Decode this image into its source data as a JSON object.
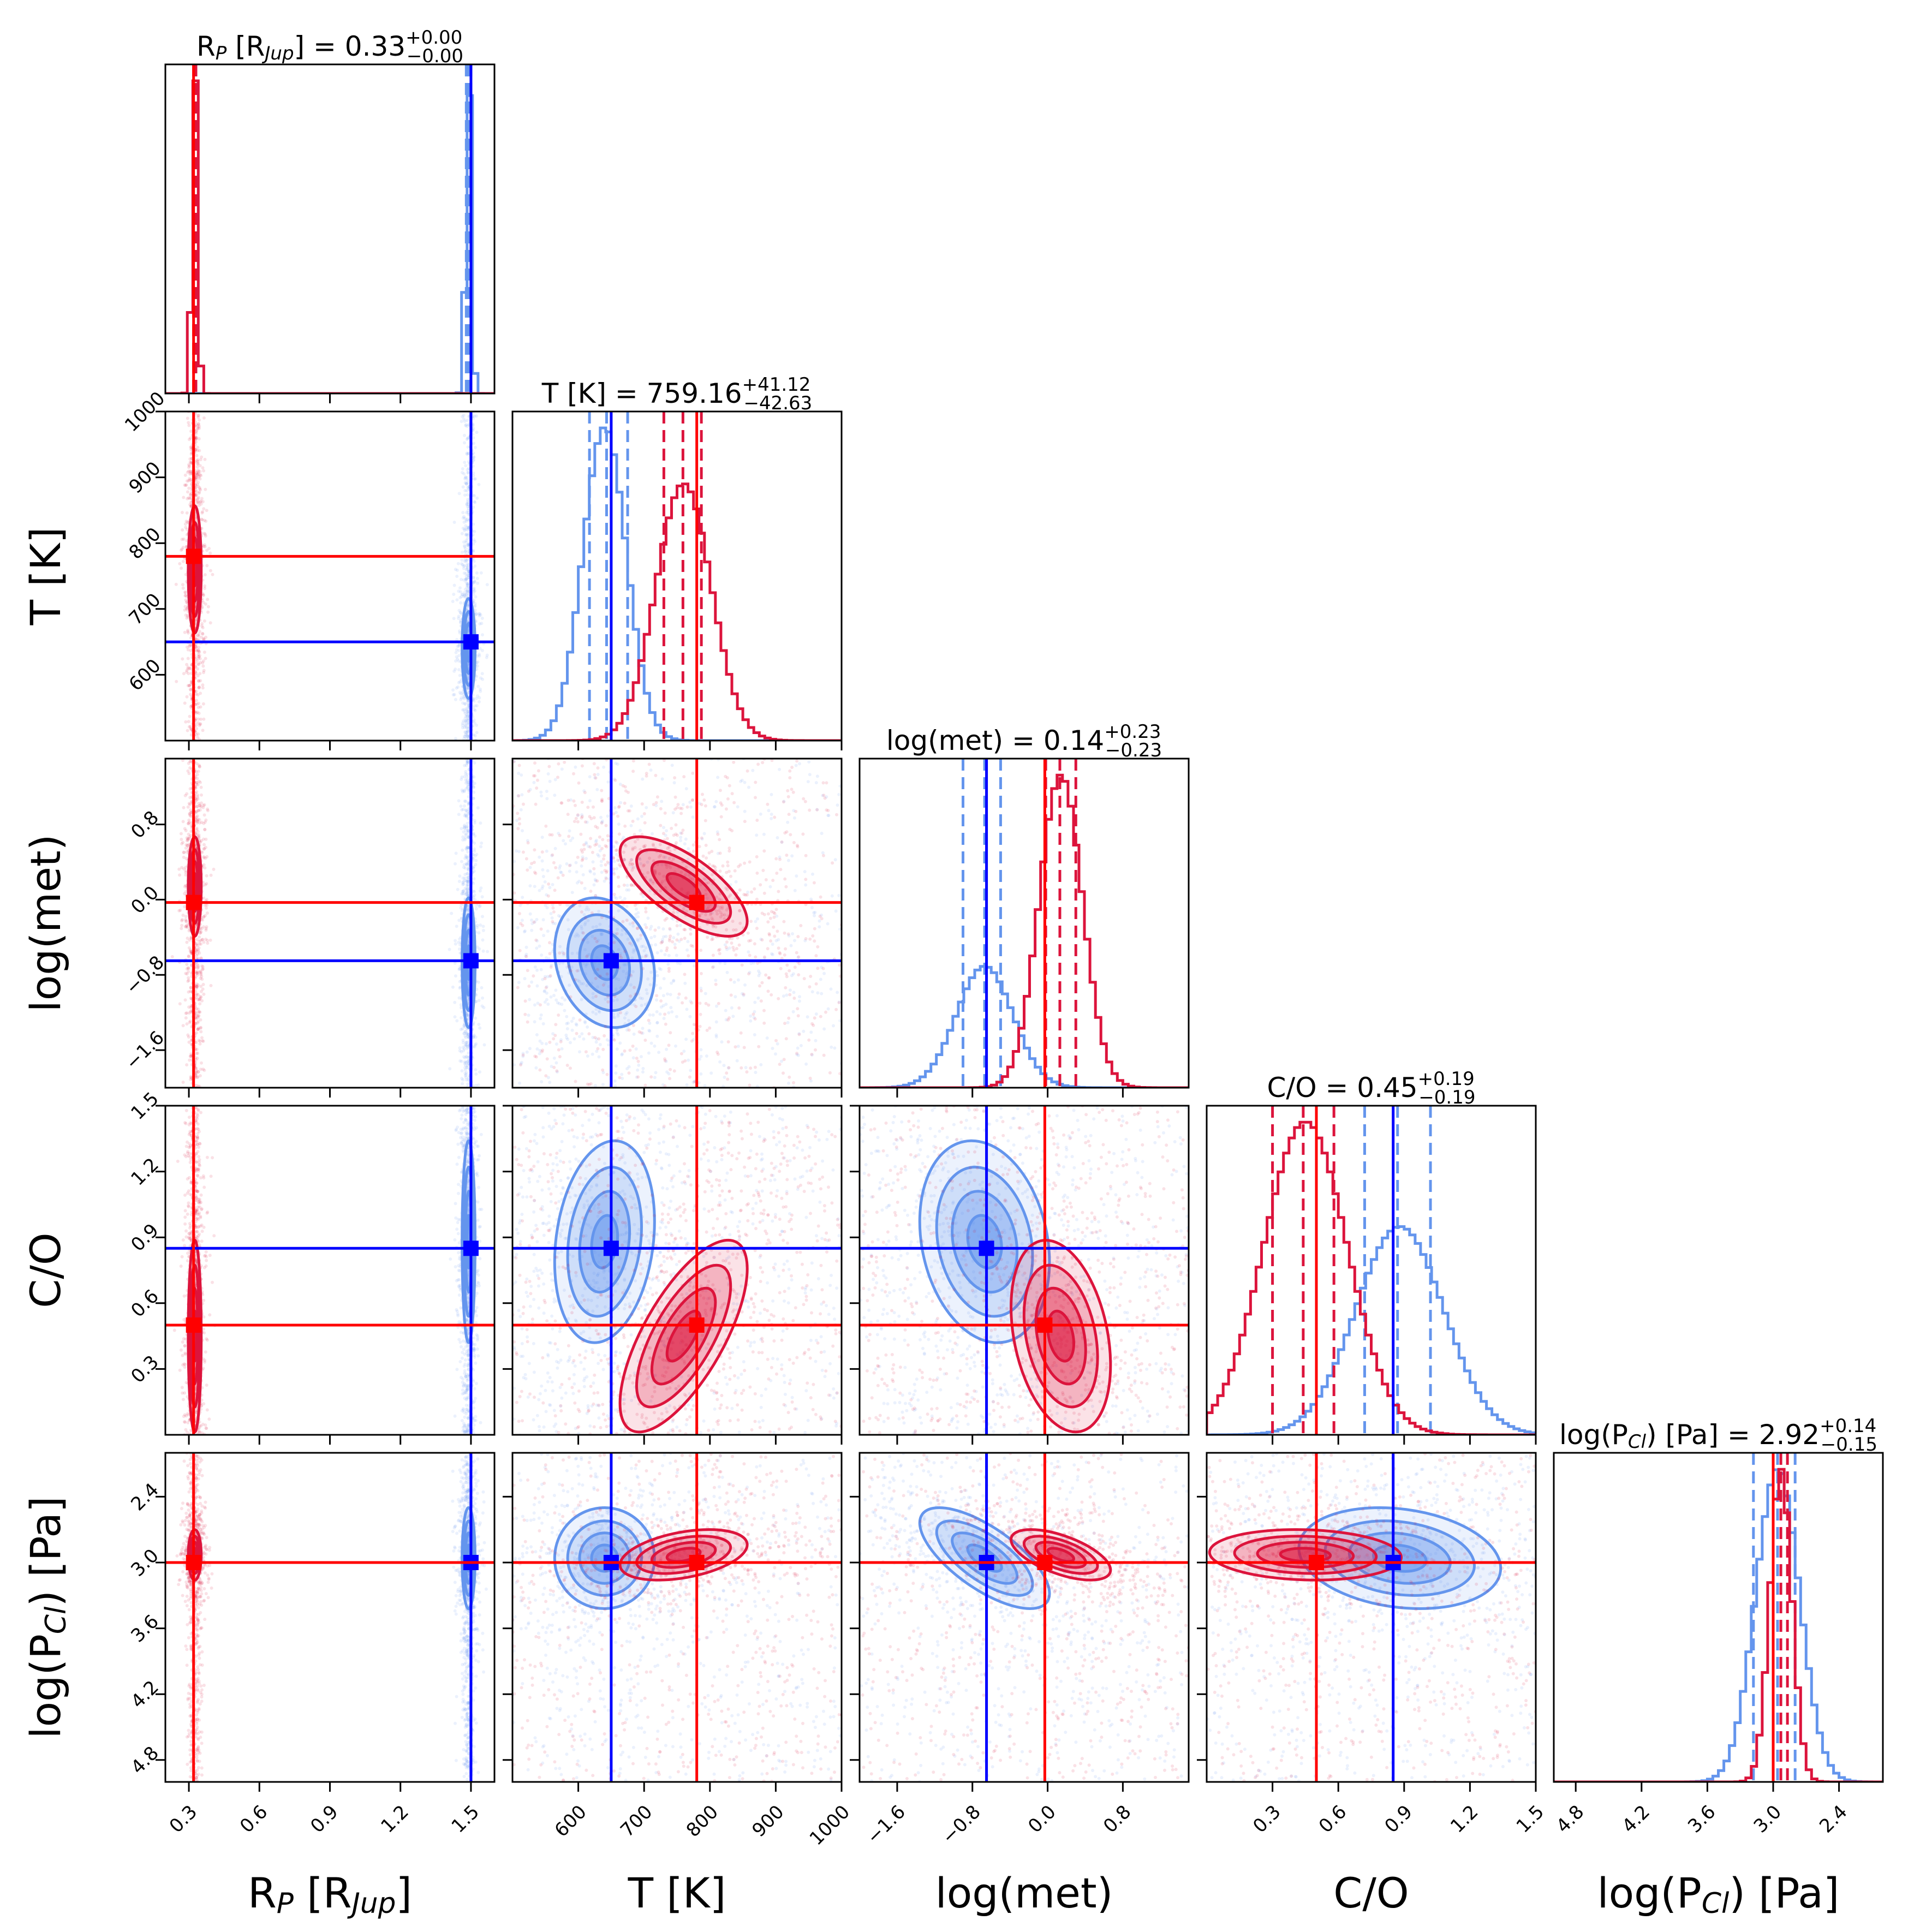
{
  "colors": {
    "blue_samples": "#6495ed",
    "blue_truth": "#0000ff",
    "red_samples": "#dc143c",
    "red_truth": "#ff0000"
  },
  "chart_data": {
    "type": "corner",
    "parameters": [
      {
        "key": "rp",
        "label_main": "R",
        "label_sub": "P",
        "label_post": " [R",
        "label_sub2": "Jup",
        "label_end": "]",
        "range": [
          0.2,
          1.6
        ],
        "ticks": [
          0.3,
          0.6,
          0.9,
          1.2,
          1.5
        ],
        "tick_labels": [
          "0.3",
          "0.6",
          "0.9",
          "1.2",
          "1.5"
        ],
        "truth_blue": 1.5,
        "truth_red": 0.32,
        "title_value": "0.33",
        "title_plus": "+0.00",
        "title_minus": "−0.00",
        "hist_red": {
          "center": 0.325,
          "sigma": 0.012,
          "quantiles": [
            0.32,
            0.325,
            0.33
          ]
        },
        "hist_blue": {
          "center": 1.49,
          "sigma": 0.012,
          "quantiles": [
            1.48,
            1.49,
            1.5
          ]
        }
      },
      {
        "key": "t",
        "label_main": "T [K]",
        "range": [
          500,
          1000
        ],
        "ticks": [
          600,
          700,
          800,
          900,
          1000
        ],
        "tick_labels": [
          "600",
          "700",
          "800",
          "900",
          "1000"
        ],
        "truth_blue": 650,
        "truth_red": 780,
        "title_value": "759.16",
        "title_plus": "+41.12",
        "title_minus": "−42.63",
        "hist_red": {
          "center": 760,
          "sigma": 42,
          "quantiles": [
            730,
            759,
            787
          ]
        },
        "hist_blue": {
          "center": 640,
          "sigma": 33,
          "quantiles": [
            617,
            643,
            675
          ]
        }
      },
      {
        "key": "met",
        "label_main": "log(met)",
        "range": [
          -2.0,
          1.5
        ],
        "ticks": [
          -1.6,
          -0.8,
          0.0,
          0.8
        ],
        "tick_labels": [
          "−1.6",
          "−0.8",
          "0.0",
          "0.8"
        ],
        "truth_blue": -0.65,
        "truth_red": -0.03,
        "title_value": "0.14",
        "title_plus": "+0.23",
        "title_minus": "−0.23",
        "hist_red": {
          "center": 0.14,
          "sigma": 0.23,
          "quantiles": [
            -0.02,
            0.13,
            0.3
          ]
        },
        "hist_blue": {
          "center": -0.67,
          "sigma": 0.3,
          "quantiles": [
            -0.9,
            -0.67,
            -0.5
          ]
        }
      },
      {
        "key": "co",
        "label_main": "C/O",
        "range": [
          0.0,
          1.5
        ],
        "ticks": [
          0.3,
          0.6,
          0.9,
          1.2,
          1.5
        ],
        "tick_labels": [
          "0.3",
          "0.6",
          "0.9",
          "1.2",
          "1.5"
        ],
        "truth_blue": 0.85,
        "truth_red": 0.5,
        "title_value": "0.45",
        "title_plus": "+0.19",
        "title_minus": "−0.19",
        "hist_red": {
          "center": 0.45,
          "sigma": 0.19,
          "quantiles": [
            0.3,
            0.44,
            0.58
          ]
        },
        "hist_blue": {
          "center": 0.88,
          "sigma": 0.2,
          "quantiles": [
            0.72,
            0.87,
            1.02
          ]
        }
      },
      {
        "key": "pcl",
        "label_main": "log(P",
        "label_sub": "Cl",
        "label_post": ") [Pa]",
        "range": [
          5.0,
          2.0
        ],
        "ticks": [
          4.8,
          4.2,
          3.6,
          3.0,
          2.4
        ],
        "tick_labels": [
          "4.8",
          "4.2",
          "3.6",
          "3.0",
          "2.4"
        ],
        "truth_blue": 3.0,
        "truth_red": 3.0,
        "title_value": "2.92",
        "title_plus": "+0.14",
        "title_minus": "−0.15",
        "hist_red": {
          "center": 2.93,
          "sigma": 0.1,
          "quantiles": [
            2.87,
            2.93,
            3.0
          ]
        },
        "hist_blue": {
          "center": 2.96,
          "sigma": 0.2,
          "quantiles": [
            2.8,
            2.96,
            3.18
          ]
        }
      }
    ],
    "title_prefix": {
      "rp": "R",
      "t": "T [K]",
      "met": "log(met)",
      "co": "C/O",
      "pcl": "log(P"
    },
    "correlations": {
      "red": {
        "1_0": 0.0,
        "2_0": 0.0,
        "2_1": -0.7,
        "3_0": 0.0,
        "3_1": 0.7,
        "3_2": -0.3,
        "4_0": 0.0,
        "4_1": -0.4,
        "4_2": 0.6,
        "4_3": 0.1
      },
      "blue": {
        "1_0": 0.0,
        "2_0": 0.0,
        "2_1": -0.2,
        "3_0": 0.0,
        "3_1": 0.2,
        "3_2": -0.2,
        "4_0": 0.0,
        "4_1": 0.0,
        "4_2": 0.7,
        "4_3": 0.2
      }
    },
    "grid": false,
    "legend": "none"
  }
}
